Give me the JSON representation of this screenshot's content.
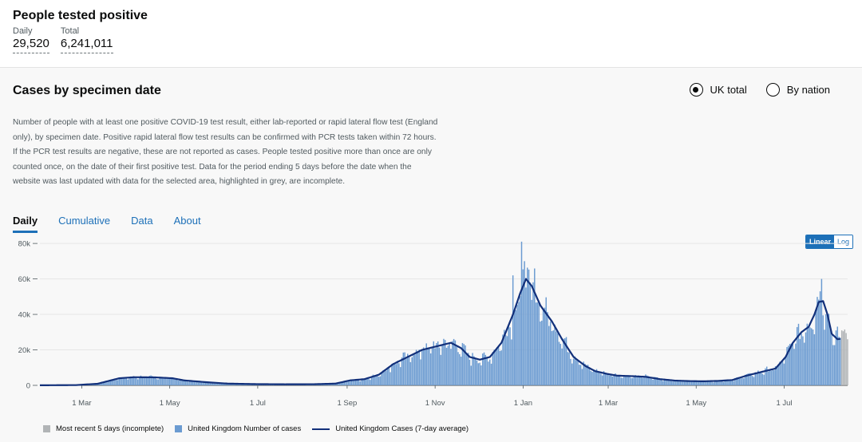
{
  "summary": {
    "title": "People tested positive",
    "daily_label": "Daily",
    "daily_value": "29,520",
    "total_label": "Total",
    "total_value": "6,241,011"
  },
  "card": {
    "title": "Cases by specimen date",
    "radio_uk": "UK total",
    "radio_nation": "By nation",
    "description": "Number of people with at least one positive COVID-19 test result, either lab-reported or rapid lateral flow test (England only), by specimen date. Positive rapid lateral flow test results can be confirmed with PCR tests taken within 72 hours. If the PCR test results are negative, these are not reported as cases. People tested positive more than once are only counted once, on the date of their first positive test. Data for the period ending 5 days before the date when the website was last updated with data for the selected area, highlighted in grey, are incomplete.",
    "tabs": [
      "Daily",
      "Cumulative",
      "Data",
      "About"
    ],
    "scale_linear": "Linear",
    "scale_log": "Log"
  },
  "legend": {
    "incomplete": "Most recent 5 days (incomplete)",
    "cases": "United Kingdom Number of cases",
    "average": "United Kingdom Cases (7-day average)"
  },
  "colors": {
    "bar": "#6b9bd1",
    "bar_incomplete": "#b1b4b6",
    "average_line": "#12307a",
    "accent": "#1d70b8"
  },
  "chart_data": {
    "type": "bar",
    "title": "Cases by specimen date",
    "xlabel": "",
    "ylabel": "",
    "ylim": [
      0,
      85000
    ],
    "y_ticks": [
      {
        "value": 0,
        "label": "0"
      },
      {
        "value": 20000,
        "label": "20k"
      },
      {
        "value": 40000,
        "label": "40k"
      },
      {
        "value": 60000,
        "label": "60k"
      },
      {
        "value": 80000,
        "label": "80k"
      }
    ],
    "x_ticks": [
      {
        "day": 29,
        "label": "1 Mar"
      },
      {
        "day": 90,
        "label": "1 May"
      },
      {
        "day": 151,
        "label": "1 Jul"
      },
      {
        "day": 213,
        "label": "1 Sep"
      },
      {
        "day": 274,
        "label": "1 Nov"
      },
      {
        "day": 335,
        "label": "1 Jan"
      },
      {
        "day": 394,
        "label": "1 Mar"
      },
      {
        "day": 455,
        "label": "1 May"
      },
      {
        "day": 516,
        "label": "1 Jul"
      }
    ],
    "day_range": [
      0,
      560
    ],
    "incomplete_last_days": 5,
    "series_avg_keyframes": [
      [
        0,
        50
      ],
      [
        25,
        150
      ],
      [
        40,
        900
      ],
      [
        55,
        4000
      ],
      [
        65,
        4600
      ],
      [
        80,
        4500
      ],
      [
        92,
        4000
      ],
      [
        100,
        2800
      ],
      [
        115,
        1800
      ],
      [
        130,
        1000
      ],
      [
        150,
        700
      ],
      [
        170,
        600
      ],
      [
        190,
        650
      ],
      [
        205,
        1000
      ],
      [
        215,
        2800
      ],
      [
        225,
        3500
      ],
      [
        235,
        6000
      ],
      [
        245,
        12000
      ],
      [
        255,
        16000
      ],
      [
        265,
        20000
      ],
      [
        275,
        22000
      ],
      [
        285,
        24000
      ],
      [
        292,
        21000
      ],
      [
        298,
        16000
      ],
      [
        305,
        14500
      ],
      [
        312,
        16000
      ],
      [
        320,
        24000
      ],
      [
        328,
        40000
      ],
      [
        333,
        52000
      ],
      [
        337,
        60000
      ],
      [
        341,
        56000
      ],
      [
        347,
        45000
      ],
      [
        355,
        36000
      ],
      [
        362,
        26000
      ],
      [
        370,
        16000
      ],
      [
        378,
        11000
      ],
      [
        385,
        8000
      ],
      [
        393,
        6500
      ],
      [
        400,
        5500
      ],
      [
        410,
        5200
      ],
      [
        420,
        4800
      ],
      [
        430,
        3500
      ],
      [
        440,
        2700
      ],
      [
        450,
        2400
      ],
      [
        460,
        2300
      ],
      [
        470,
        2500
      ],
      [
        480,
        3000
      ],
      [
        490,
        5500
      ],
      [
        500,
        7500
      ],
      [
        510,
        9500
      ],
      [
        517,
        16000
      ],
      [
        522,
        24000
      ],
      [
        528,
        30000
      ],
      [
        533,
        33000
      ],
      [
        537,
        40000
      ],
      [
        540,
        47000
      ],
      [
        543,
        47500
      ],
      [
        546,
        40000
      ],
      [
        549,
        29000
      ],
      [
        553,
        26000
      ],
      [
        557,
        26500
      ],
      [
        560,
        27000
      ]
    ],
    "series": [
      {
        "name": "United Kingdom Number of cases",
        "type": "bar"
      },
      {
        "name": "United Kingdom Cases (7-day average)",
        "type": "line"
      },
      {
        "name": "Most recent 5 days (incomplete)",
        "type": "bar"
      }
    ],
    "notable_values": {
      "peak_jan": 81000,
      "peak_jul": 60000,
      "incomplete_values": [
        31000,
        30500,
        31500,
        29500,
        26000
      ]
    }
  }
}
